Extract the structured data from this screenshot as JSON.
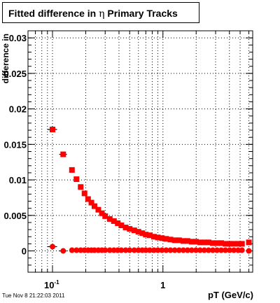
{
  "title": {
    "prefix": "Fitted difference in",
    "symbol": "η",
    "suffix": "Primary Tracks"
  },
  "footer": "Tue Nov  8 21:22:03 2011",
  "chart_data": {
    "type": "scatter",
    "xscale": "log",
    "xlabel": "pT (GeV/c)",
    "ylabel": "difference in",
    "xlim": [
      0.06,
      6.5
    ],
    "ylim": [
      -0.003,
      0.031
    ],
    "grid": true,
    "colors": {
      "marker": "#ff0000",
      "error_bar": "#000000",
      "axis": "#000000"
    },
    "yticks": [
      {
        "v": 0,
        "label": "0"
      },
      {
        "v": 0.005,
        "label": "0.005"
      },
      {
        "v": 0.01,
        "label": "0.01"
      },
      {
        "v": 0.015,
        "label": "0.015"
      },
      {
        "v": 0.02,
        "label": "0.02"
      },
      {
        "v": 0.025,
        "label": "0.025"
      },
      {
        "v": 0.03,
        "label": "0.03"
      }
    ],
    "xticks": [
      {
        "v": 0.1,
        "base": "10",
        "exp": "-1"
      },
      {
        "v": 1,
        "base": "1",
        "exp": ""
      }
    ],
    "series": [
      {
        "x": [
          0.1,
          0.125,
          0.15,
          0.165,
          0.18,
          0.195,
          0.21,
          0.225,
          0.24,
          0.26,
          0.28,
          0.3,
          0.33,
          0.36,
          0.39,
          0.42,
          0.46,
          0.5,
          0.55,
          0.6,
          0.65,
          0.7,
          0.76,
          0.83,
          0.9,
          0.98,
          1.07,
          1.17,
          1.28,
          1.4,
          1.53,
          1.67,
          1.82,
          1.99,
          2.17,
          2.37,
          2.59,
          2.83,
          3.09,
          3.37,
          3.68,
          4.02,
          4.39,
          4.8,
          5.2,
          6.0
        ],
        "y": [
          0.0171,
          0.0136,
          0.0114,
          0.0101,
          0.009,
          0.0081,
          0.0073,
          0.0068,
          0.0063,
          0.0058,
          0.0053,
          0.0049,
          0.0045,
          0.0042,
          0.0039,
          0.0036,
          0.0033,
          0.0031,
          0.0029,
          0.0027,
          0.0025,
          0.0023,
          0.0022,
          0.002,
          0.0019,
          0.0018,
          0.0017,
          0.0016,
          0.0015,
          0.0015,
          0.0014,
          0.0014,
          0.0013,
          0.0013,
          0.0012,
          0.0012,
          0.0012,
          0.0011,
          0.0011,
          0.0011,
          0.001,
          0.001,
          0.001,
          0.001,
          0.001,
          0.0012
        ],
        "xerr": [
          0.01,
          0.01,
          0.008,
          0.008,
          0.008,
          0.008,
          0.008,
          0.008,
          0.008,
          0.01,
          0.01,
          0.01,
          0.015,
          0.015,
          0.015,
          0.015,
          0.02,
          0.02,
          0.025,
          0.025,
          0.025,
          0.025,
          0.03,
          0.035,
          0.035,
          0.04,
          0.045,
          0.05,
          0.055,
          0.06,
          0.065,
          0.07,
          0.075,
          0.085,
          0.09,
          0.1,
          0.11,
          0.12,
          0.13,
          0.14,
          0.155,
          0.17,
          0.185,
          0.2,
          0.2,
          0.1
        ],
        "yerr": [
          0.0003,
          0.0002,
          0.0002,
          0.0002,
          0.0002,
          0.0002,
          0.0001,
          0.0001,
          0.0001,
          0.0001,
          0.0001,
          0.0001,
          0.0001,
          0.0001,
          0.0001,
          0.0001,
          0.0001,
          0.0001,
          0.0001,
          0.0001,
          0.0001,
          0.0001,
          0.0001,
          0.0001,
          0.0001,
          0.0001,
          0.0001,
          0.0001,
          0.0001,
          0.0001,
          0.0001,
          0.0001,
          0.0001,
          0.0001,
          0.0001,
          0.0001,
          0.0001,
          0.0001,
          0.0001,
          0.0001,
          0.0001,
          0.0001,
          0.0001,
          0.0001,
          0.0001,
          0.0001
        ]
      },
      {
        "x": [
          0.1,
          0.125,
          0.15,
          0.165,
          0.18,
          0.195,
          0.21,
          0.225,
          0.24,
          0.26,
          0.28,
          0.3,
          0.33,
          0.36,
          0.39,
          0.42,
          0.46,
          0.5,
          0.55,
          0.6,
          0.65,
          0.7,
          0.76,
          0.83,
          0.9,
          0.98,
          1.07,
          1.17,
          1.28,
          1.4,
          1.53,
          1.67,
          1.82,
          1.99,
          2.17,
          2.37,
          2.59,
          2.83,
          3.09,
          3.37,
          3.68,
          4.02,
          4.39,
          4.8,
          5.2,
          6.0
        ],
        "y": [
          0.0006,
          0.0,
          0.0001,
          0.0001,
          0.0001,
          0.0001,
          0.0001,
          0.0001,
          0.0001,
          0.0001,
          0.0001,
          0.0001,
          0.0001,
          0.0001,
          0.0001,
          0.0001,
          0.0001,
          0.0001,
          0.0001,
          0.0001,
          0.0001,
          0.0001,
          0.0001,
          0.0001,
          0.0001,
          0.0001,
          0.0001,
          0.0001,
          0.0001,
          0.0001,
          0.0001,
          0.0001,
          0.0001,
          0.0001,
          0.0001,
          0.0001,
          0.0001,
          0.0001,
          0.0001,
          0.0001,
          0.0001,
          0.0001,
          0.0001,
          0.0001,
          0.0001,
          0.0
        ],
        "xerr": [
          0.01,
          0.01,
          0.008,
          0.008,
          0.008,
          0.008,
          0.008,
          0.008,
          0.008,
          0.01,
          0.01,
          0.01,
          0.015,
          0.015,
          0.015,
          0.015,
          0.02,
          0.02,
          0.025,
          0.025,
          0.025,
          0.025,
          0.03,
          0.035,
          0.035,
          0.04,
          0.045,
          0.05,
          0.055,
          0.06,
          0.065,
          0.07,
          0.075,
          0.085,
          0.09,
          0.1,
          0.11,
          0.12,
          0.13,
          0.14,
          0.155,
          0.17,
          0.185,
          0.2,
          0.2,
          0.1
        ],
        "yerr": [
          0.0002,
          0.0001,
          0.0001,
          0.0001,
          0.0001,
          0.0001,
          0.0001,
          0.0001,
          0.0001,
          0.0001,
          0.0001,
          0.0001,
          0.0001,
          0.0001,
          0.0001,
          0.0001,
          0.0001,
          0.0001,
          0.0001,
          0.0001,
          0.0001,
          0.0001,
          0.0001,
          0.0001,
          0.0001,
          0.0001,
          0.0001,
          0.0001,
          0.0001,
          0.0001,
          0.0001,
          0.0001,
          0.0001,
          0.0001,
          0.0001,
          0.0001,
          0.0001,
          0.0001,
          0.0001,
          0.0001,
          0.0001,
          0.0001,
          0.0001,
          0.0001,
          0.0001,
          0.0001
        ]
      }
    ]
  }
}
